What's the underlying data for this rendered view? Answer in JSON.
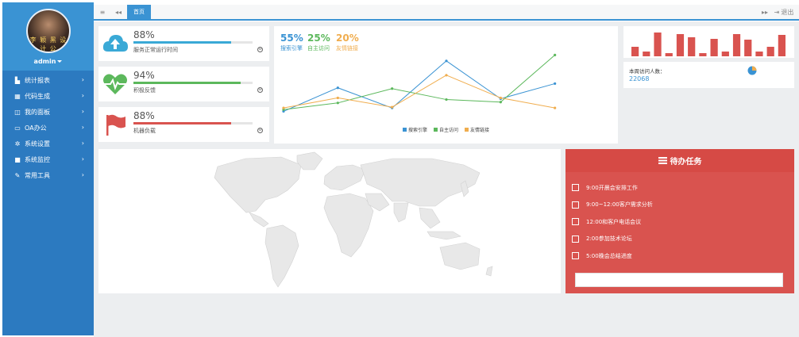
{
  "user": {
    "name": "admin",
    "avatar_seal": "李 颖 黑 设 计 公"
  },
  "sidebar": {
    "items": [
      {
        "icon": "bar-chart-icon",
        "glyph": "▙",
        "label": "统计报表"
      },
      {
        "icon": "grid-icon",
        "glyph": "▦",
        "label": "代码生成"
      },
      {
        "icon": "columns-icon",
        "glyph": "◫",
        "label": "我的面板"
      },
      {
        "icon": "desktop-icon",
        "glyph": "▭",
        "label": "OA办公"
      },
      {
        "icon": "gear-icon",
        "glyph": "✲",
        "label": "系统设置"
      },
      {
        "icon": "camera-icon",
        "glyph": "■",
        "label": "系统监控"
      },
      {
        "icon": "wrench-icon",
        "glyph": "✎",
        "label": "常用工具"
      }
    ],
    "arrow": "›"
  },
  "topbar": {
    "menu_icon": "≡",
    "back_icon": "◂◂",
    "tab_label": "首页",
    "forward_icon": "▸▸",
    "logout_icon": "⇥",
    "logout_label": "退出"
  },
  "stats": [
    {
      "value": "88%",
      "label": "服务正常运行时间",
      "progress": 0.82,
      "color": "#3aa9d6",
      "icon": "cloud-upload-icon"
    },
    {
      "value": "94%",
      "label": "积极反馈",
      "progress": 0.9,
      "color": "#5cb85c",
      "icon": "heartbeat-icon"
    },
    {
      "value": "88%",
      "label": "机器负载",
      "progress": 0.82,
      "color": "#d9534f",
      "icon": "flag-icon"
    }
  ],
  "stat_more_icon": "⊖",
  "kpis": [
    {
      "value": "55%",
      "label": "搜索引擎",
      "color": "#3a93d3"
    },
    {
      "value": "25%",
      "label": "自主访问",
      "color": "#5cb85c"
    },
    {
      "value": "20%",
      "label": "友情链接",
      "color": "#f0ad4e"
    }
  ],
  "chart_data": {
    "type": "line",
    "title": "",
    "xlabel": "",
    "ylabel": "",
    "grid": false,
    "legend": "bottom",
    "x": [
      1,
      2,
      3,
      4,
      5,
      6,
      7
    ],
    "ylim": [
      0,
      100
    ],
    "series": [
      {
        "name": "搜索引擎",
        "color": "#3a93d3",
        "values": [
          10,
          38,
          14,
          70,
          25,
          43,
          null
        ]
      },
      {
        "name": "自主访问",
        "color": "#5cb85c",
        "values": [
          12,
          20,
          37,
          24,
          21,
          77,
          null
        ]
      },
      {
        "name": "友情链接",
        "color": "#f0ad4e",
        "values": [
          14,
          26,
          15,
          53,
          26,
          14,
          null
        ]
      }
    ]
  },
  "bar_chart": {
    "color": "#d9534f",
    "values": [
      12,
      6,
      30,
      4,
      28,
      24,
      4,
      22,
      6,
      28,
      21,
      6,
      12,
      27
    ]
  },
  "visits": {
    "label": "本周访问人数：",
    "value": "22068",
    "pie_colors": [
      "#3a93d3",
      "#f0ad4e"
    ]
  },
  "todo": {
    "icon": "list-icon",
    "title": "待办任务",
    "items": [
      "9:00开晨会安排工作",
      "9:00~12:00客户需求分析",
      "12:00和客户电话会议",
      "2:00参加技术论坛",
      "5:00晚会总结进度"
    ]
  }
}
